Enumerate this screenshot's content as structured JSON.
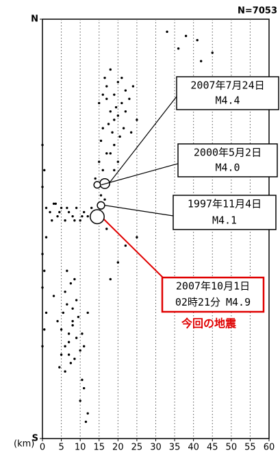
{
  "chart_data": {
    "type": "scatter",
    "subtitle": "N=7053",
    "xlabel": "(km)",
    "xlim": [
      0,
      60
    ],
    "xticks": [
      0,
      5,
      10,
      15,
      20,
      25,
      30,
      35,
      40,
      45,
      50,
      55,
      60
    ],
    "ylim": [
      0,
      100
    ],
    "yticks": [
      {
        "value": 100,
        "label": "N"
      },
      {
        "value": 0,
        "label": "S"
      }
    ],
    "grid": true,
    "color": "#000000",
    "x": [
      15,
      16,
      17,
      18,
      19,
      20,
      21,
      22,
      17.5,
      18.5,
      19.5,
      16.5,
      20.5,
      21.5,
      23,
      24,
      18,
      19,
      20,
      17,
      16,
      22,
      21,
      19,
      18,
      25,
      15.5,
      23.5,
      20,
      19,
      33,
      36,
      41,
      45,
      38,
      42,
      15,
      16,
      14,
      17,
      15.5,
      16.5,
      14.5,
      1,
      2,
      3,
      4,
      5,
      6,
      7,
      8,
      9,
      10,
      11,
      12,
      13,
      2.5,
      4.5,
      6.5,
      8.5,
      10.5,
      3.5,
      0,
      0.5,
      0,
      1,
      0,
      0.5,
      0,
      1,
      0.5,
      0,
      5,
      6,
      7,
      8,
      9,
      10,
      4,
      5.5,
      6.5,
      7.5,
      8.5,
      9.5,
      6,
      7,
      8,
      5,
      9,
      11,
      4.5,
      10.5,
      6,
      7,
      8,
      3,
      12,
      7.5,
      6.5,
      8.5,
      11,
      10,
      12,
      11.5,
      10.5,
      20,
      25,
      18,
      22,
      17
    ],
    "values": [
      80,
      82,
      84,
      78,
      76,
      85,
      80,
      83,
      75,
      73,
      79,
      86,
      72,
      74,
      81,
      84,
      88,
      70,
      77,
      81,
      74,
      78,
      86,
      82,
      68,
      76,
      71,
      73,
      66,
      64,
      97,
      93,
      95,
      92,
      96,
      90,
      66,
      64,
      62,
      68,
      58,
      57,
      60,
      55,
      54,
      56,
      53,
      55,
      52,
      54,
      53,
      55,
      52,
      54,
      53,
      55,
      52,
      54,
      55,
      52,
      53,
      56,
      70,
      64,
      60,
      48,
      44,
      40,
      36,
      30,
      26,
      22,
      20,
      22,
      25,
      27,
      24,
      21,
      28,
      30,
      32,
      18,
      19,
      29,
      35,
      23,
      31,
      26,
      33,
      22,
      17,
      25,
      16,
      20,
      28,
      34,
      30,
      37,
      40,
      38,
      12,
      9,
      6,
      4,
      14,
      42,
      48,
      38,
      46,
      50
    ],
    "events": [
      {
        "date": "2007年7月24日",
        "magnitude": 4.4,
        "magnitude_label": "M4.4",
        "x": 16.5,
        "y": 60.8
      },
      {
        "date": "2000年5月2日",
        "magnitude": 4.0,
        "magnitude_label": "M4.0",
        "x": 14.5,
        "y": 60.5
      },
      {
        "date": "1997年11月4日",
        "magnitude": 4.1,
        "magnitude_label": "M4.1",
        "x": 15.5,
        "y": 55.6
      },
      {
        "date": "2007年10月1日",
        "time": "02時21分",
        "magnitude": 4.9,
        "magnitude_label": "M4.9",
        "x": 14.5,
        "y": 52.9,
        "note": "今回の地震"
      }
    ]
  }
}
